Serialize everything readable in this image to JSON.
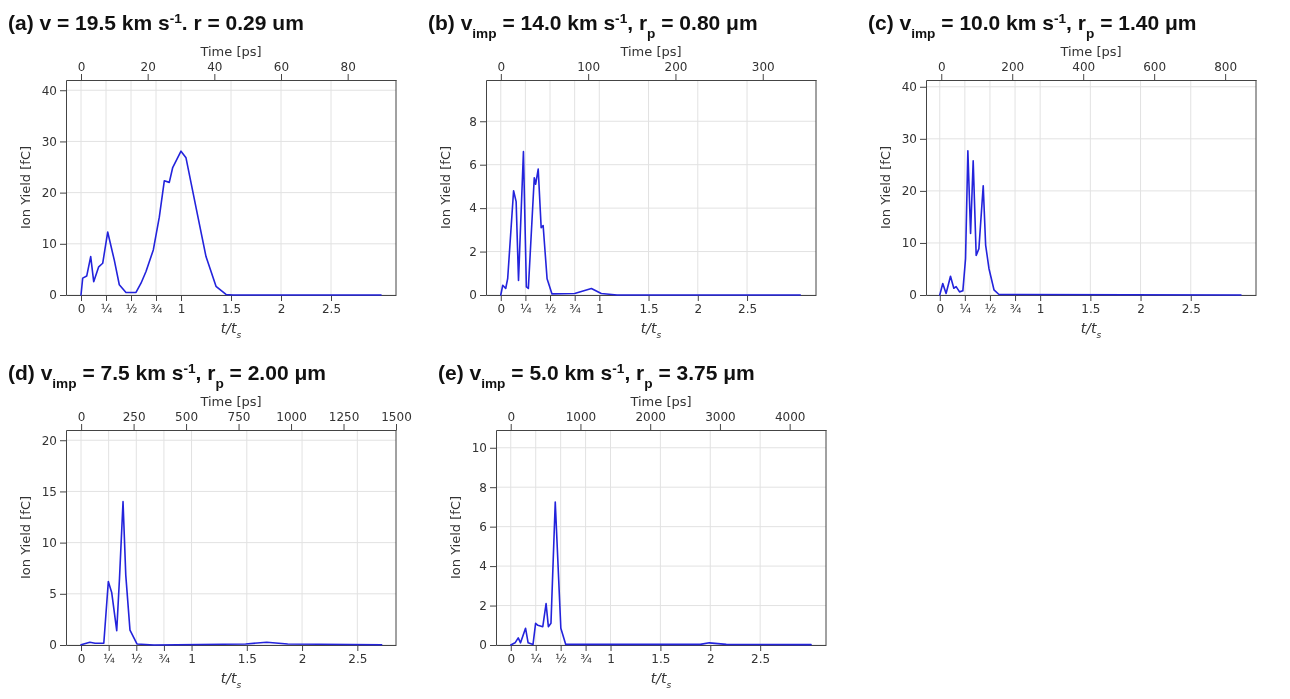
{
  "chart_data": [
    {
      "type": "line",
      "title": "(a) v = 19.5 km s$^{-1}$. r = 0.29 um",
      "xlabel": "t/t$_{s}$",
      "x2label": "Time [ps]",
      "ylabel": "Ion Yield [fC]",
      "color": "#2323dc",
      "grid": true,
      "xlim": [
        -0.15,
        3.15
      ],
      "xticks": [
        0,
        {
          "value": 0.25,
          "label": "¼"
        },
        {
          "value": 0.5,
          "label": "½"
        },
        {
          "value": 0.75,
          "label": "¾"
        },
        1,
        1.5,
        2,
        2.5
      ],
      "x2lim": [
        -4.5,
        94.5
      ],
      "x2ticks": [
        0,
        20,
        40,
        60,
        80
      ],
      "ylim": [
        0,
        42
      ],
      "yticks": [
        0,
        10,
        20,
        30,
        40
      ],
      "x": [
        0,
        0.017,
        0.057,
        0.097,
        0.127,
        0.177,
        0.217,
        0.267,
        0.333,
        0.383,
        0.45,
        0.55,
        0.6,
        0.65,
        0.723,
        0.783,
        0.833,
        0.883,
        0.917,
        1.0,
        1.05,
        1.15,
        1.25,
        1.35,
        1.45,
        1.52,
        3.0
      ],
      "values": [
        0,
        3.3,
        3.7,
        7.5,
        2.6,
        5.5,
        6.2,
        12.3,
        6.8,
        2,
        0.5,
        0.5,
        2.3,
        4.6,
        8.8,
        15.2,
        22.3,
        22,
        24.9,
        28.1,
        26.8,
        17.1,
        7.5,
        1.7,
        0.1,
        0,
        0
      ]
    },
    {
      "type": "line",
      "title": "(b) v$_{imp}$ = 14.0 km s$^{-1}$, r$_{p}$ = 0.80 μm",
      "xlabel": "t/t$_{s}$",
      "x2label": "Time [ps]",
      "ylabel": "Ion Yield [fC]",
      "color": "#2323dc",
      "grid": true,
      "xlim": [
        -0.15,
        3.2
      ],
      "xticks": [
        0,
        {
          "value": 0.25,
          "label": "¼"
        },
        {
          "value": 0.5,
          "label": "½"
        },
        {
          "value": 0.75,
          "label": "¾"
        },
        1,
        1.5,
        2,
        2.5
      ],
      "x2lim": [
        -17,
        361
      ],
      "x2ticks": [
        0,
        100,
        200,
        300
      ],
      "ylim": [
        0,
        9.9
      ],
      "yticks": [
        0,
        2,
        4,
        6,
        8
      ],
      "x": [
        0,
        0.02,
        0.05,
        0.07,
        0.13,
        0.156,
        0.18,
        0.23,
        0.26,
        0.28,
        0.34,
        0.354,
        0.38,
        0.41,
        0.43,
        0.47,
        0.52,
        0.75,
        0.92,
        1.02,
        1.18,
        3.04
      ],
      "values": [
        0,
        0.45,
        0.3,
        0.75,
        4.8,
        4.3,
        0.67,
        6.6,
        0.37,
        0.3,
        5.4,
        5.1,
        5.8,
        3.1,
        3.2,
        0.75,
        0.05,
        0.07,
        0.3,
        0.07,
        0,
        0
      ]
    },
    {
      "type": "line",
      "title": "(c) v$_{imp}$ = 10.0 km s$^{-1}$, r$_{p}$ = 1.40 μm",
      "xlabel": "t/t$_{s}$",
      "x2label": "Time [ps]",
      "ylabel": "Ion Yield [fC]",
      "color": "#2323dc",
      "grid": true,
      "xlim": [
        -0.137,
        3.15
      ],
      "xticks": [
        0,
        {
          "value": 0.25,
          "label": "¼"
        },
        {
          "value": 0.5,
          "label": "½"
        },
        {
          "value": 0.75,
          "label": "¾"
        },
        1,
        1.5,
        2,
        2.5
      ],
      "x2lim": [
        -43,
        887
      ],
      "x2ticks": [
        0,
        200,
        400,
        600,
        800
      ],
      "ylim": [
        0,
        41.3
      ],
      "yticks": [
        0,
        10,
        20,
        30,
        40
      ],
      "x": [
        0,
        0.03,
        0.063,
        0.107,
        0.14,
        0.163,
        0.197,
        0.23,
        0.257,
        0.28,
        0.307,
        0.333,
        0.363,
        0.39,
        0.433,
        0.457,
        0.49,
        0.54,
        0.59,
        3.0
      ],
      "values": [
        0,
        2.2,
        0.3,
        3.6,
        1.3,
        1.6,
        0.6,
        0.8,
        7,
        27.7,
        11.8,
        25.8,
        7.6,
        8.9,
        21,
        9.6,
        5.1,
        1,
        0.1,
        0
      ]
    },
    {
      "type": "line",
      "title": "(d) v$_{imp}$ = 7.5 km s$^{-1}$, r$_{p}$ = 2.00 μm",
      "xlabel": "t/t$_{s}$",
      "x2label": "Time [ps]",
      "ylabel": "Ion Yield [fC]",
      "color": "#2323dc",
      "grid": true,
      "xlim": [
        -0.136,
        2.85
      ],
      "xticks": [
        0,
        {
          "value": 0.25,
          "label": "¼"
        },
        {
          "value": 0.5,
          "label": "½"
        },
        {
          "value": 0.75,
          "label": "¾"
        },
        1,
        1.5,
        2,
        2.5
      ],
      "x2lim": [
        -72,
        1500
      ],
      "x2ticks": [
        0,
        250,
        500,
        750,
        1000,
        1250,
        1500
      ],
      "ylim": [
        0,
        21
      ],
      "yticks": [
        0,
        5,
        10,
        15,
        20
      ],
      "x": [
        0,
        0.08,
        0.127,
        0.206,
        0.247,
        0.278,
        0.323,
        0.348,
        0.38,
        0.405,
        0.443,
        0.506,
        0.66,
        1.49,
        1.68,
        1.87,
        2.72
      ],
      "values": [
        0.03,
        0.27,
        0.17,
        0.17,
        6.2,
        5.1,
        1.4,
        6.5,
        14.0,
        6.8,
        1.45,
        0.1,
        0,
        0.1,
        0.27,
        0.1,
        0.03
      ]
    },
    {
      "type": "line",
      "title": "(e) v$_{imp}$ = 5.0 km s$^{-1}$, r$_{p}$ = 3.75 μm",
      "xlabel": "t/t$_{s}$",
      "x2label": "Time [ps]",
      "ylabel": "Ion Yield [fC]",
      "color": "#2323dc",
      "grid": true,
      "xlim": [
        -0.148,
        3.16
      ],
      "xticks": [
        0,
        {
          "value": 0.25,
          "label": "¼"
        },
        {
          "value": 0.5,
          "label": "½"
        },
        {
          "value": 0.75,
          "label": "¾"
        },
        1,
        1.5,
        2,
        2.5
      ],
      "x2lim": [
        -211,
        4521
      ],
      "x2ticks": [
        0,
        1000,
        2000,
        3000,
        4000
      ],
      "ylim": [
        0,
        10.9
      ],
      "yticks": [
        0,
        2,
        4,
        6,
        8,
        10
      ],
      "x": [
        0,
        0.043,
        0.075,
        0.098,
        0.148,
        0.174,
        0.223,
        0.249,
        0.272,
        0.321,
        0.354,
        0.377,
        0.403,
        0.446,
        0.502,
        0.551,
        0.98,
        1.08,
        1.9,
        1.99,
        2.16,
        3.01
      ],
      "values": [
        0,
        0.11,
        0.36,
        0.11,
        0.85,
        0.11,
        0.03,
        1.1,
        1.0,
        0.93,
        2.1,
        0.93,
        1.1,
        7.25,
        0.85,
        0.03,
        0.03,
        0.03,
        0.03,
        0.11,
        0.03,
        0.02
      ]
    }
  ]
}
